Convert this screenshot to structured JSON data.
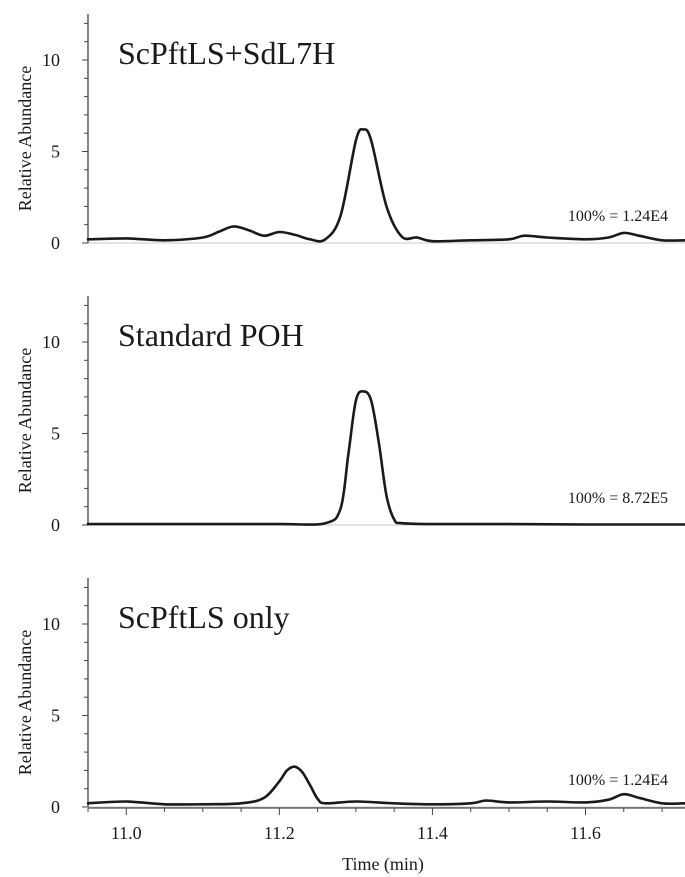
{
  "chart_data": {
    "type": "line",
    "xlabel": "Time (min)",
    "xlim": [
      10.95,
      11.73
    ],
    "x_ticks": [
      11.0,
      11.2,
      11.4,
      11.6
    ],
    "x_tick_labels": [
      "11.0",
      "11.2",
      "11.4",
      "11.6"
    ],
    "panels": [
      {
        "title": "ScPftLS+SdL7H",
        "ylabel": "Relative Abundance",
        "ylim": [
          0,
          12.5
        ],
        "y_ticks": [
          0,
          5,
          10
        ],
        "y_tick_labels": [
          "0",
          "5",
          "10"
        ],
        "annotation": "100% = 1.24E4",
        "x": [
          10.95,
          11.0,
          11.05,
          11.1,
          11.12,
          11.14,
          11.16,
          11.18,
          11.2,
          11.22,
          11.24,
          11.26,
          11.28,
          11.3,
          11.31,
          11.32,
          11.34,
          11.36,
          11.38,
          11.4,
          11.45,
          11.5,
          11.52,
          11.55,
          11.6,
          11.63,
          11.65,
          11.67,
          11.7,
          11.73
        ],
        "y": [
          0.2,
          0.25,
          0.15,
          0.3,
          0.6,
          0.9,
          0.7,
          0.4,
          0.6,
          0.45,
          0.2,
          0.2,
          1.5,
          5.6,
          6.2,
          5.6,
          2.0,
          0.35,
          0.3,
          0.1,
          0.15,
          0.2,
          0.4,
          0.3,
          0.2,
          0.3,
          0.55,
          0.4,
          0.15,
          0.15
        ]
      },
      {
        "title": "Standard POH",
        "ylabel": "Relative Abundance",
        "ylim": [
          0,
          12.5
        ],
        "y_ticks": [
          0,
          5,
          10
        ],
        "y_tick_labels": [
          "0",
          "5",
          "10"
        ],
        "annotation": "100% = 8.72E5",
        "x": [
          10.95,
          11.1,
          11.2,
          11.26,
          11.28,
          11.29,
          11.3,
          11.31,
          11.32,
          11.33,
          11.34,
          11.35,
          11.36,
          11.4,
          11.5,
          11.6,
          11.73
        ],
        "y": [
          0.05,
          0.05,
          0.05,
          0.1,
          0.9,
          3.8,
          6.8,
          7.3,
          6.8,
          4.5,
          1.6,
          0.3,
          0.1,
          0.05,
          0.05,
          0.03,
          0.03
        ]
      },
      {
        "title": "ScPftLS only",
        "ylabel": "Relative Abundance",
        "ylim": [
          0,
          12.5
        ],
        "y_ticks": [
          0,
          5,
          10
        ],
        "y_tick_labels": [
          "0",
          "5",
          "10"
        ],
        "annotation": "100% = 1.24E4",
        "x": [
          10.95,
          11.0,
          11.05,
          11.1,
          11.15,
          11.18,
          11.2,
          11.21,
          11.22,
          11.23,
          11.24,
          11.25,
          11.26,
          11.3,
          11.35,
          11.4,
          11.45,
          11.47,
          11.5,
          11.55,
          11.6,
          11.63,
          11.65,
          11.67,
          11.7,
          11.73
        ],
        "y": [
          0.2,
          0.3,
          0.15,
          0.15,
          0.2,
          0.5,
          1.4,
          2.0,
          2.2,
          1.9,
          1.2,
          0.45,
          0.2,
          0.3,
          0.2,
          0.15,
          0.2,
          0.35,
          0.25,
          0.3,
          0.25,
          0.4,
          0.7,
          0.5,
          0.2,
          0.2
        ]
      }
    ]
  }
}
